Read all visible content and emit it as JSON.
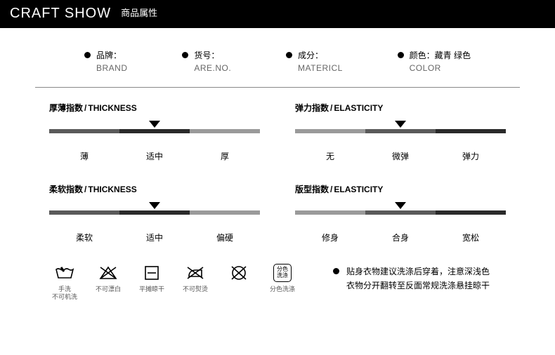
{
  "header": {
    "title": "CRAFT SHOW",
    "subtitle": "商品属性"
  },
  "attrs": [
    {
      "zh": "品牌：",
      "en": "BRAND"
    },
    {
      "zh": "货号：",
      "en": "ARE.NO."
    },
    {
      "zh": "成分：",
      "en": "MATERICL"
    },
    {
      "zh": "颜色：藏青  绿色",
      "en": "COLOR"
    }
  ],
  "gauges": [
    {
      "title_zh": "厚薄指数",
      "title_en": "THICKNESS",
      "labels": [
        "薄",
        "适中",
        "厚"
      ],
      "pointer_pct": 50,
      "seg_colors": [
        "#5a5a5a",
        "#2a2a2a",
        "#9a9a9a"
      ]
    },
    {
      "title_zh": "弹力指数",
      "title_en": "ELASTICITY",
      "labels": [
        "无",
        "微弹",
        "弹力"
      ],
      "pointer_pct": 50,
      "seg_colors": [
        "#9a9a9a",
        "#5a5a5a",
        "#2a2a2a"
      ]
    },
    {
      "title_zh": "柔软指数",
      "title_en": "THICKNESS",
      "labels": [
        "柔软",
        "适中",
        "偏硬"
      ],
      "pointer_pct": 50,
      "seg_colors": [
        "#5a5a5a",
        "#2a2a2a",
        "#9a9a9a"
      ]
    },
    {
      "title_zh": "版型指数",
      "title_en": "ELASTICITY",
      "labels": [
        "修身",
        "合身",
        "宽松"
      ],
      "pointer_pct": 50,
      "seg_colors": [
        "#9a9a9a",
        "#5a5a5a",
        "#2a2a2a"
      ]
    }
  ],
  "care": [
    {
      "label": "手洗\n不可机洗",
      "icon": "handwash"
    },
    {
      "label": "不可漂白",
      "icon": "no-bleach"
    },
    {
      "label": "平摊晾干",
      "icon": "flat-dry"
    },
    {
      "label": "不可熨烫",
      "icon": "no-iron"
    },
    {
      "label": "",
      "icon": "no-dryclean"
    },
    {
      "label": "分色洗涤",
      "icon": "separate-wash"
    }
  ],
  "note": {
    "line1": "贴身衣物建议洗涤后穿着，注意深浅色",
    "line2": "衣物分开翻转至反面常规洗涤悬挂晾干"
  },
  "style": {
    "header_bg": "#000000",
    "header_color": "#ffffff",
    "divider_color": "#888888",
    "text_color": "#000000",
    "muted_color": "#666666"
  }
}
